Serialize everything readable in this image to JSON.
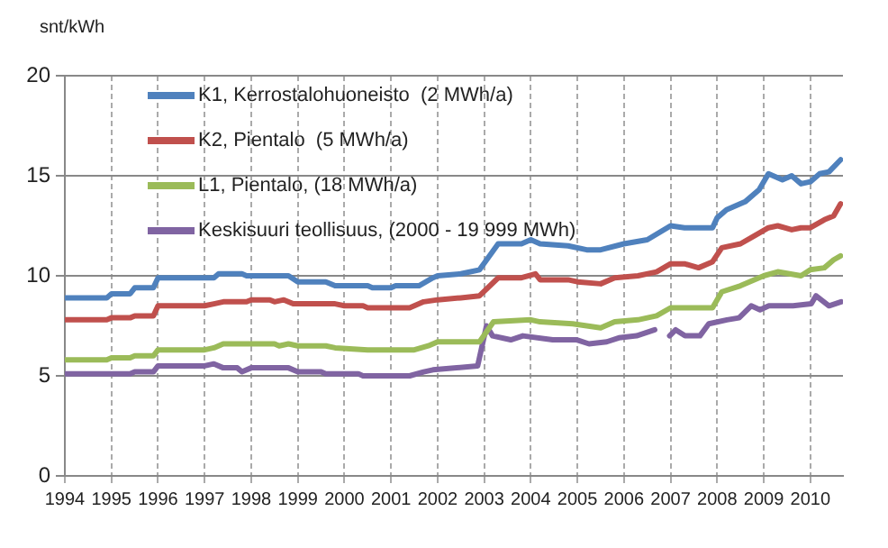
{
  "chart_data": {
    "type": "line",
    "ylabel": "snt/kWh",
    "xlim": [
      1994,
      2010.7
    ],
    "xticks": [
      1994,
      1995,
      1996,
      1997,
      1998,
      1999,
      2000,
      2001,
      2002,
      2003,
      2004,
      2005,
      2006,
      2007,
      2008,
      2009,
      2010
    ],
    "ylim": [
      0,
      20
    ],
    "yticks": [
      0,
      5,
      10,
      15,
      20
    ],
    "grid": true,
    "legend": "top left",
    "marker": "none",
    "line_style": "solid",
    "series": [
      {
        "name": "K1, Kerrostalohuoneisto  (2 MWh/a)",
        "color": "#4f81bd",
        "x": [
          1994,
          1994.9,
          1995.0,
          1995.4,
          1995.5,
          1995.9,
          1996.0,
          1997.2,
          1997.3,
          1997.8,
          1997.9,
          1998.8,
          1999.0,
          1999.6,
          1999.8,
          2000.5,
          2000.6,
          2001.0,
          2001.1,
          2001.6,
          2001.9,
          2002.0,
          2002.5,
          2002.9,
          2003.3,
          2003.8,
          2004.0,
          2004.2,
          2004.8,
          2005.2,
          2005.5,
          2006.0,
          2006.5,
          2007.0,
          2007.3,
          2007.9,
          2008.0,
          2008.2,
          2008.6,
          2008.9,
          2009.1,
          2009.4,
          2009.6,
          2009.8,
          2010.0,
          2010.2,
          2010.4,
          2010.65
        ],
        "values": [
          8.9,
          8.9,
          9.1,
          9.1,
          9.4,
          9.4,
          9.9,
          9.9,
          10.1,
          10.1,
          10.0,
          10.0,
          9.7,
          9.7,
          9.5,
          9.5,
          9.4,
          9.4,
          9.5,
          9.5,
          9.9,
          10.0,
          10.1,
          10.3,
          11.6,
          11.6,
          11.8,
          11.6,
          11.5,
          11.3,
          11.3,
          11.6,
          11.8,
          12.5,
          12.4,
          12.4,
          12.9,
          13.3,
          13.7,
          14.3,
          15.1,
          14.8,
          15.0,
          14.6,
          14.7,
          15.1,
          15.2,
          15.8
        ]
      },
      {
        "name": "K2, Pientalo  (5 MWh/a)",
        "color": "#c0504d",
        "x": [
          1994,
          1994.9,
          1995.0,
          1995.4,
          1995.5,
          1995.9,
          1996.0,
          1997.0,
          1997.2,
          1997.4,
          1997.9,
          1998.0,
          1998.4,
          1998.5,
          1998.7,
          1998.9,
          1999.8,
          2000.0,
          2000.4,
          2000.5,
          2001.4,
          2001.7,
          2002.0,
          2002.5,
          2002.9,
          2003.3,
          2003.8,
          2004.1,
          2004.2,
          2004.8,
          2005.0,
          2005.5,
          2005.8,
          2006.3,
          2006.7,
          2007.0,
          2007.3,
          2007.6,
          2007.9,
          2008.1,
          2008.5,
          2008.8,
          2009.1,
          2009.3,
          2009.6,
          2009.8,
          2010.0,
          2010.3,
          2010.5,
          2010.65
        ],
        "values": [
          7.8,
          7.8,
          7.9,
          7.9,
          8.0,
          8.0,
          8.5,
          8.5,
          8.6,
          8.7,
          8.7,
          8.8,
          8.8,
          8.7,
          8.8,
          8.6,
          8.6,
          8.5,
          8.5,
          8.4,
          8.4,
          8.7,
          8.8,
          8.9,
          9.0,
          9.9,
          9.9,
          10.1,
          9.8,
          9.8,
          9.7,
          9.6,
          9.9,
          10.0,
          10.2,
          10.6,
          10.6,
          10.4,
          10.7,
          11.4,
          11.6,
          12.0,
          12.4,
          12.5,
          12.3,
          12.4,
          12.4,
          12.8,
          13.0,
          13.6
        ]
      },
      {
        "name": "L1, Pientalo, (18 MWh/a)",
        "color": "#9bbb59",
        "x": [
          1994,
          1994.9,
          1995.0,
          1995.4,
          1995.5,
          1995.9,
          1996.0,
          1997.0,
          1997.2,
          1997.4,
          1997.8,
          1998.0,
          1998.5,
          1998.6,
          1998.8,
          1999.0,
          1999.6,
          1999.8,
          2000.5,
          2000.6,
          2001.5,
          2001.8,
          2002.0,
          2002.9,
          2003.2,
          2004.0,
          2004.2,
          2004.9,
          2005.2,
          2005.5,
          2005.8,
          2006.3,
          2006.7,
          2007.0,
          2007.3,
          2007.9,
          2008.1,
          2008.5,
          2009.0,
          2009.3,
          2009.8,
          2010.0,
          2010.3,
          2010.5,
          2010.65
        ],
        "values": [
          5.8,
          5.8,
          5.9,
          5.9,
          6.0,
          6.0,
          6.3,
          6.3,
          6.4,
          6.6,
          6.6,
          6.6,
          6.6,
          6.5,
          6.6,
          6.5,
          6.5,
          6.4,
          6.3,
          6.3,
          6.3,
          6.5,
          6.7,
          6.7,
          7.7,
          7.8,
          7.7,
          7.6,
          7.5,
          7.4,
          7.7,
          7.8,
          8.0,
          8.4,
          8.4,
          8.4,
          9.2,
          9.5,
          10.0,
          10.2,
          10.0,
          10.3,
          10.4,
          10.8,
          11.0
        ]
      },
      {
        "name": "Keskisuuri teollisuus, (2000 - 19 999 MWh)",
        "color": "#8064a2",
        "x": [
          1994,
          1995.4,
          1995.5,
          1995.9,
          1996.0,
          1997.0,
          1997.2,
          1997.4,
          1997.7,
          1997.8,
          1998.0,
          1998.8,
          1999.0,
          1999.5,
          1999.6,
          2000.3,
          2000.4,
          2001.4,
          2001.7,
          2001.9,
          2002.86,
          2003.05,
          2003.18,
          2003.57,
          2003.83,
          2004.47,
          2004.99,
          2005.25,
          2005.63,
          2005.89,
          2006.27,
          2006.66,
          2006.8,
          2006.98,
          2007.11,
          2007.31,
          2007.63,
          2007.82,
          2008.21,
          2008.47,
          2008.73,
          2008.92,
          2009.11,
          2009.63,
          2010.02,
          2010.12,
          2010.4,
          2010.66
        ],
        "values": [
          5.1,
          5.1,
          5.2,
          5.2,
          5.5,
          5.5,
          5.6,
          5.4,
          5.4,
          5.2,
          5.4,
          5.4,
          5.2,
          5.2,
          5.1,
          5.1,
          5.0,
          5.0,
          5.2,
          5.3,
          5.5,
          7.5,
          7.0,
          6.8,
          7.0,
          6.8,
          6.8,
          6.6,
          6.7,
          6.9,
          7.0,
          7.3,
          null,
          7.0,
          7.3,
          7.0,
          7.0,
          7.6,
          7.8,
          7.9,
          8.5,
          8.3,
          8.5,
          8.5,
          8.6,
          9.0,
          8.5,
          8.7
        ]
      }
    ]
  }
}
